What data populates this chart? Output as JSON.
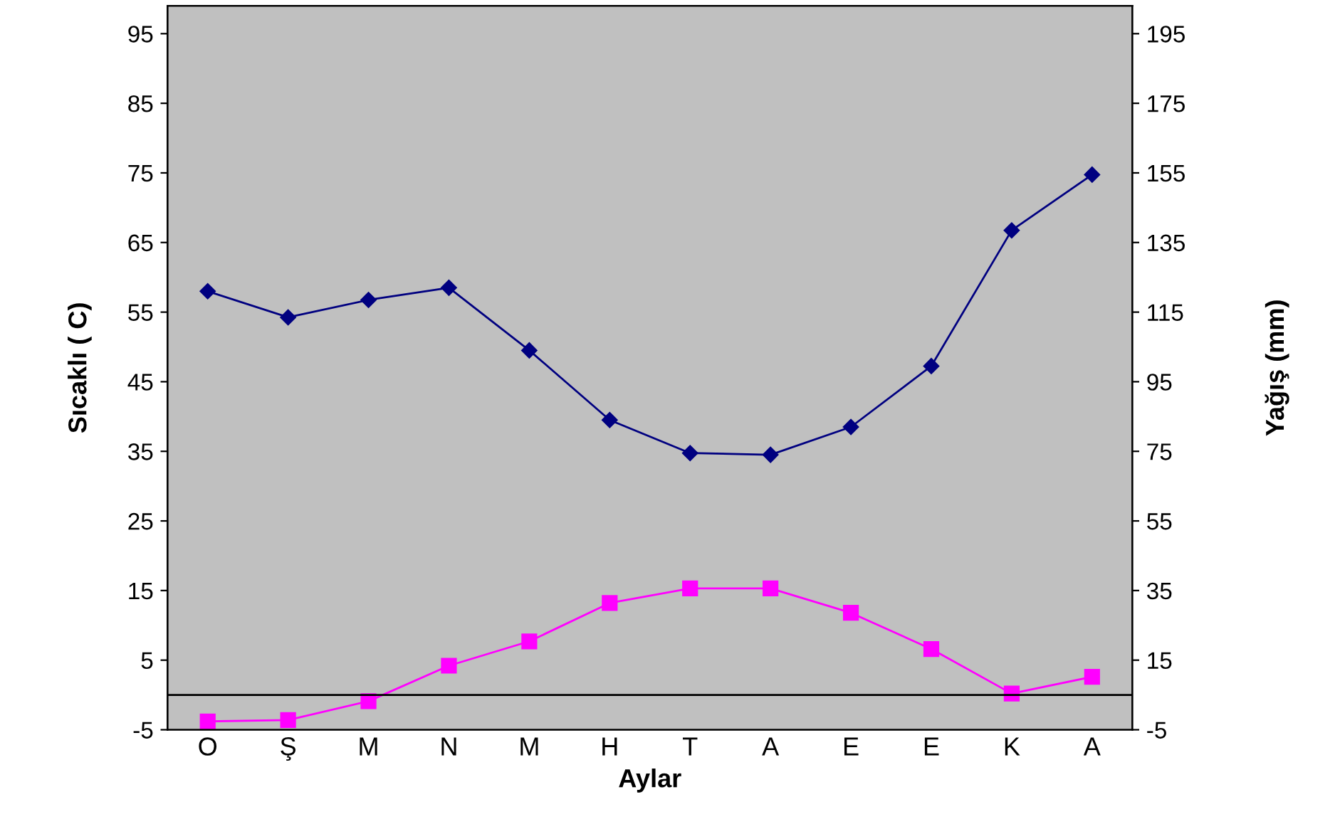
{
  "chart_data": {
    "type": "line",
    "xlabel": "Aylar",
    "ylabel": "Sıcaklı ( C)",
    "y2label": "Yağış (mm)",
    "categories": [
      "O",
      "Ş",
      "M",
      "N",
      "M",
      "H",
      "T",
      "A",
      "E",
      "E",
      "K",
      "A"
    ],
    "series": [
      {
        "color": "#000080",
        "axis": "y2",
        "marker": "diamond",
        "values": [
          121,
          113.5,
          118.5,
          122,
          104,
          84,
          74.5,
          74,
          82,
          99.5,
          138.5,
          154.5
        ]
      },
      {
        "color": "#ff00ff",
        "axis": "y",
        "marker": "square",
        "values": [
          -3.8,
          -3.6,
          -0.9,
          4.2,
          7.7,
          13.2,
          15.3,
          15.3,
          11.8,
          6.6,
          0.2,
          2.6
        ]
      }
    ],
    "ylim": [
      -5,
      99
    ],
    "yticks": [
      -5,
      5,
      15,
      25,
      35,
      45,
      55,
      65,
      75,
      85,
      95
    ],
    "y2lim": [
      -5,
      203
    ],
    "y2ticks": [
      -5,
      15,
      35,
      55,
      75,
      95,
      115,
      135,
      155,
      175,
      195
    ],
    "ref_lines": [
      {
        "axis": "y",
        "value": 0,
        "color": "#000000"
      }
    ],
    "grid": false,
    "legend": false,
    "line_style": "solid"
  }
}
